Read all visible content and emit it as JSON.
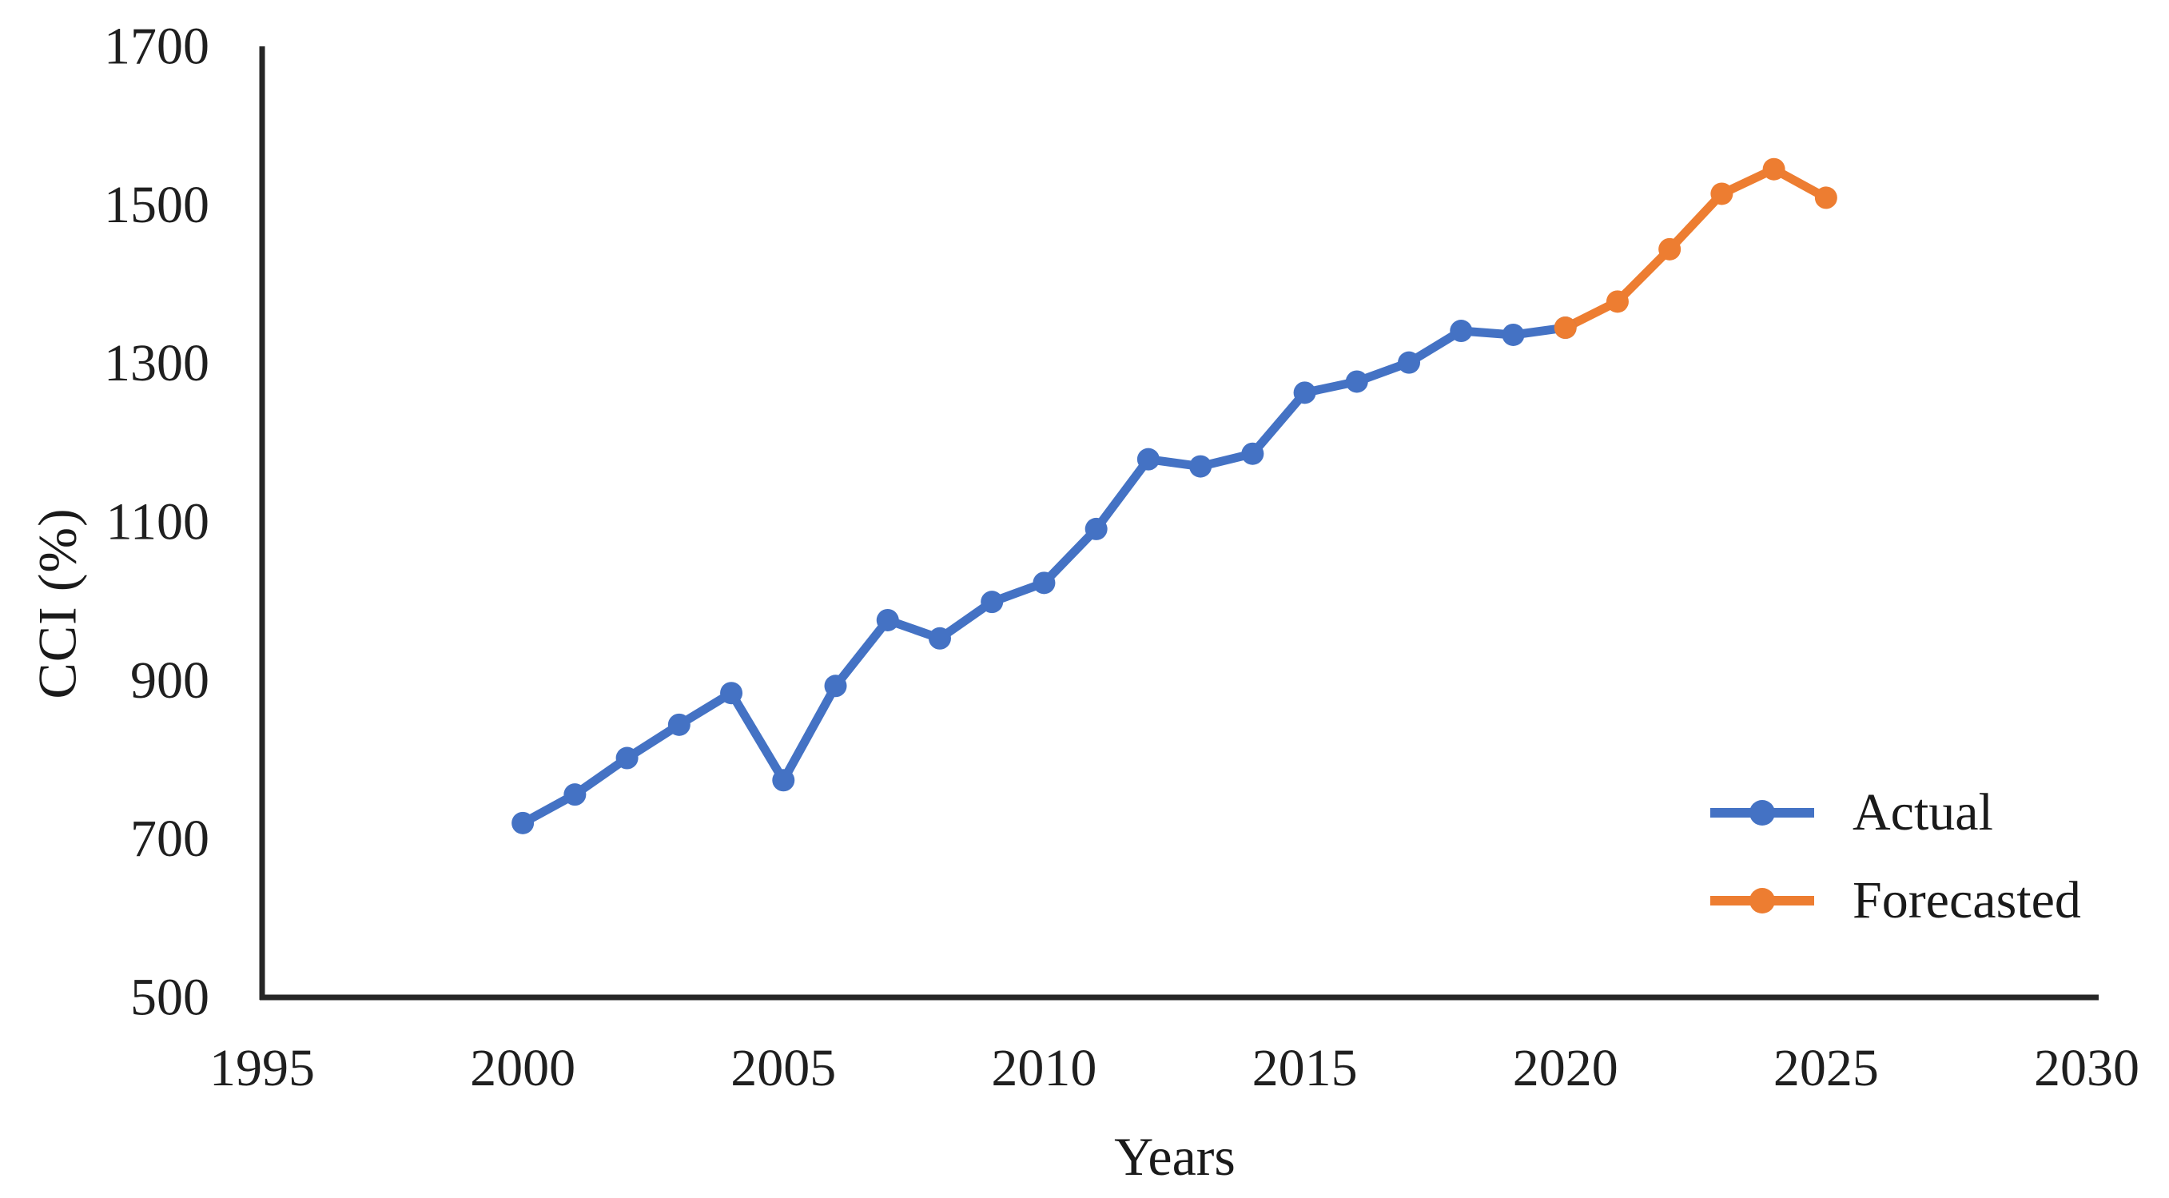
{
  "figure": {
    "background": "#ffffff",
    "axis_line_color": "#262626",
    "tick_text_color": "#1f1f1f"
  },
  "chart_data": {
    "type": "line",
    "title": "",
    "xlabel": "Years",
    "ylabel": "CCI (%)",
    "xlim": [
      1995,
      2030
    ],
    "ylim": [
      500,
      1700
    ],
    "x_ticks": [
      1995,
      2000,
      2005,
      2010,
      2015,
      2020,
      2025,
      2030
    ],
    "y_ticks": [
      500,
      700,
      900,
      1100,
      1300,
      1500,
      1700
    ],
    "grid": false,
    "legend_position": "inside lower right",
    "marker": "circle",
    "series": [
      {
        "name": "Actual",
        "color": "#4472C4",
        "x": [
          2000,
          2001,
          2002,
          2003,
          2004,
          2005,
          2006,
          2007,
          2008,
          2009,
          2010,
          2011,
          2012,
          2013,
          2014,
          2015,
          2016,
          2017,
          2018,
          2019,
          2020
        ],
        "values": [
          720,
          756,
          802,
          844,
          884,
          774,
          893,
          976,
          953,
          999,
          1023,
          1091,
          1179,
          1170,
          1186,
          1263,
          1277,
          1301,
          1341,
          1336,
          1345
        ]
      },
      {
        "name": "Forecasted",
        "color": "#ED7D31",
        "x": [
          2020,
          2021,
          2022,
          2023,
          2024,
          2025
        ],
        "values": [
          1345,
          1378,
          1444,
          1514,
          1545,
          1509
        ]
      }
    ]
  },
  "legend": {
    "items": [
      {
        "label": "Actual",
        "color": "#4472C4"
      },
      {
        "label": "Forecasted",
        "color": "#ED7D31"
      }
    ]
  }
}
